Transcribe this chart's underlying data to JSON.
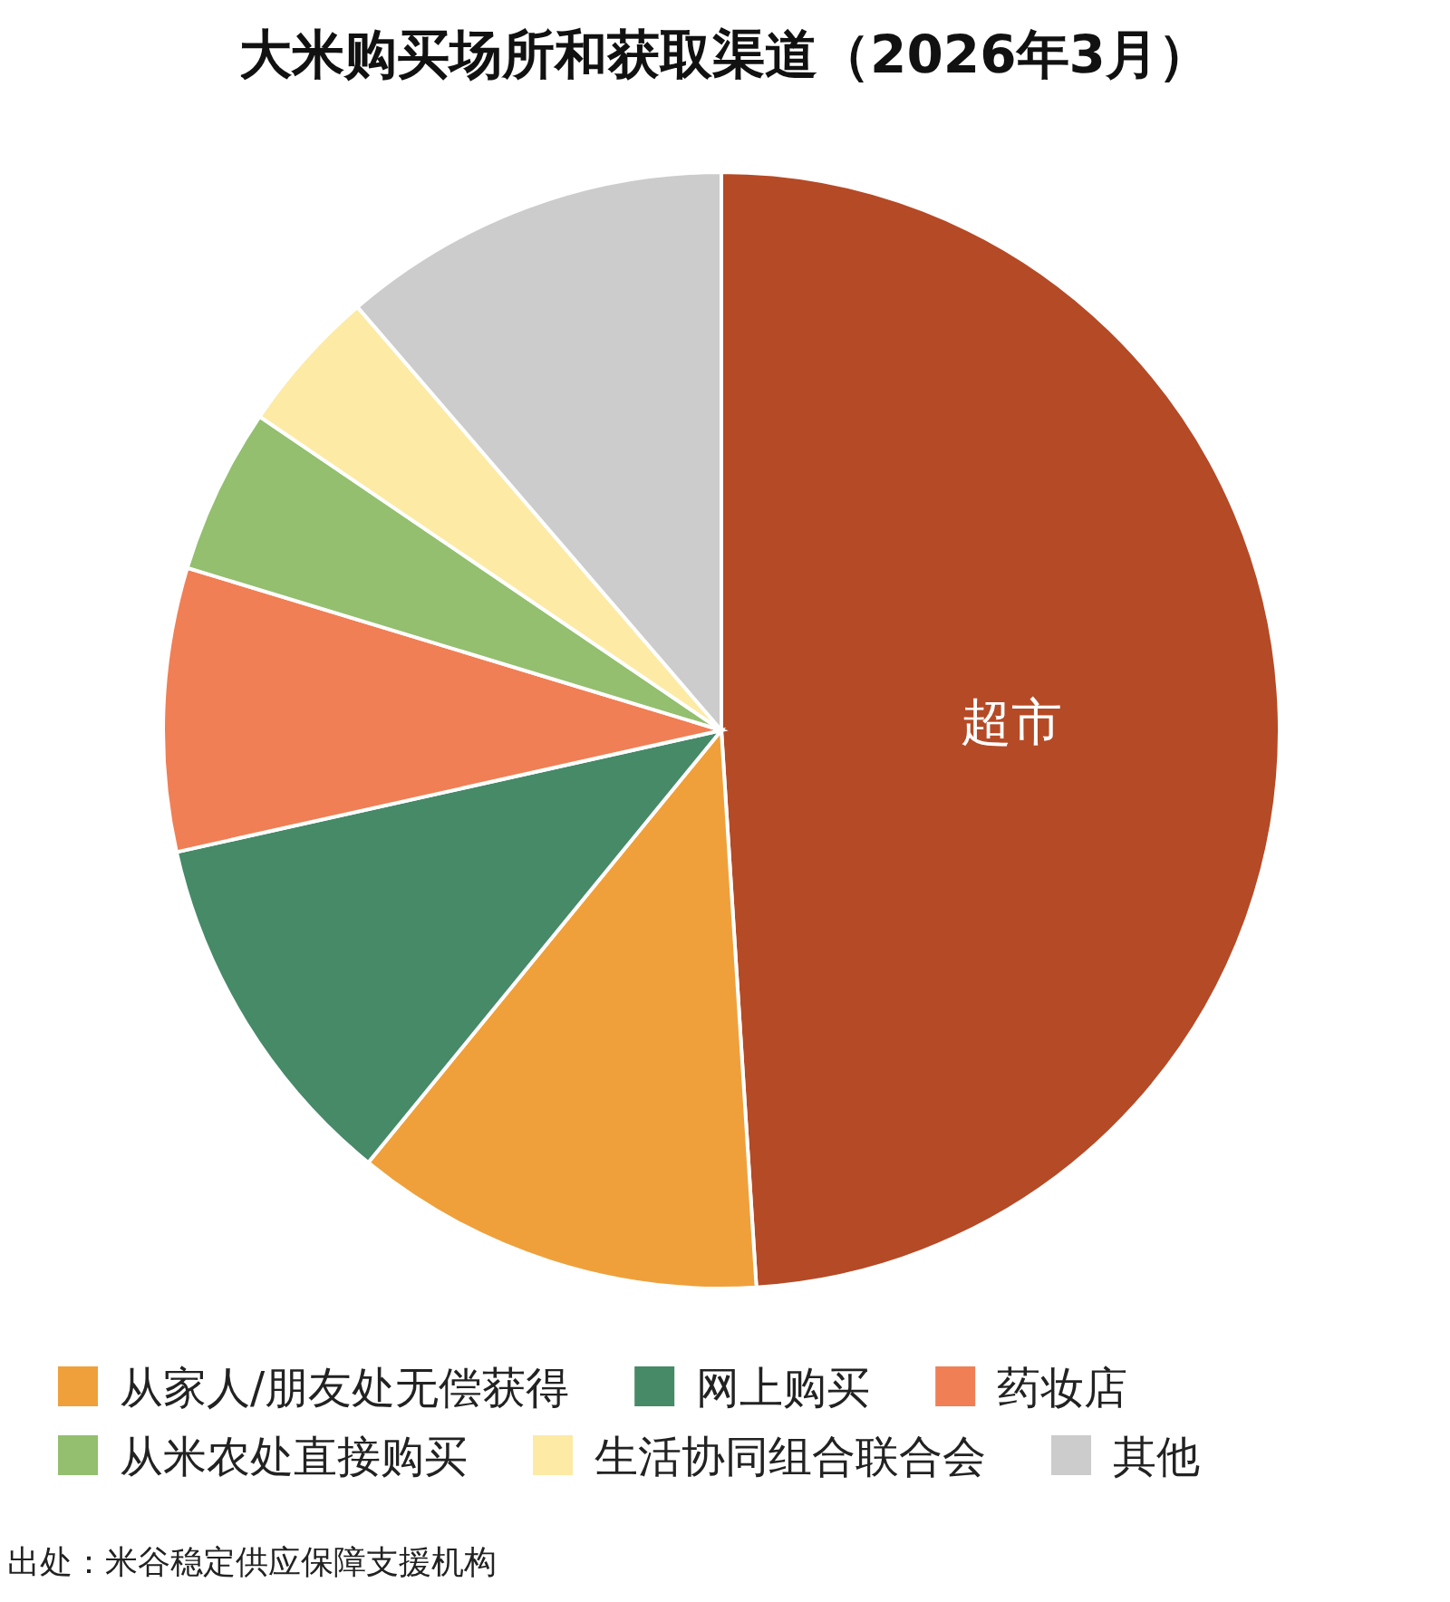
{
  "chart_data": {
    "type": "pie",
    "title": "大米购买场所和获取渠道（2026年3月）",
    "categories": [
      "超市",
      "从家人/朋友处无偿获得",
      "网上购买",
      "药妆店",
      "从米农处直接购买",
      "生活协同组合联合会",
      "其他"
    ],
    "values": [
      49.0,
      11.9,
      10.6,
      8.2,
      4.8,
      4.2,
      11.3
    ],
    "colors": [
      "#b54a26",
      "#f0a03a",
      "#468a68",
      "#f07f55",
      "#93bf6e",
      "#fdeaa4",
      "#cccccc"
    ],
    "legend": "bottom",
    "annotations": [
      "出处：米谷稳定供应保障支援机构"
    ]
  }
}
